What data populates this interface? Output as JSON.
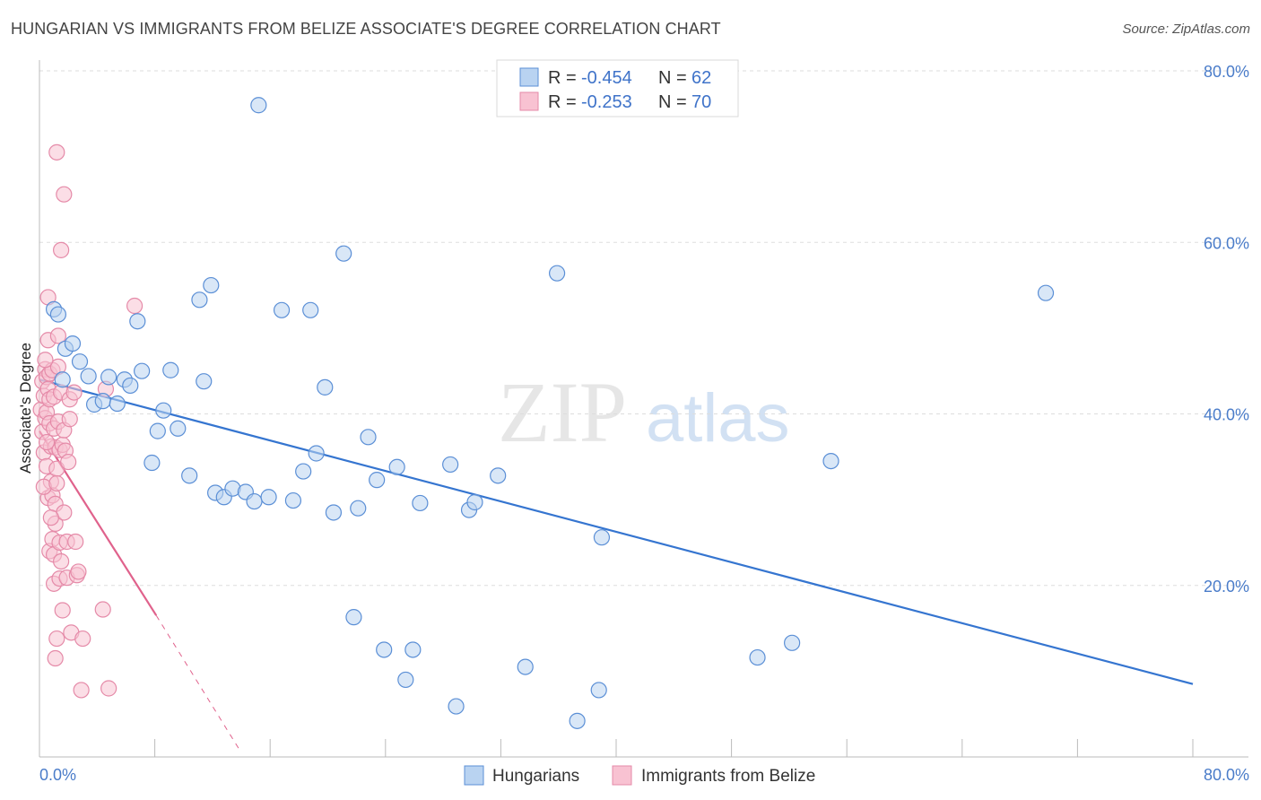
{
  "title": "HUNGARIAN VS IMMIGRANTS FROM BELIZE ASSOCIATE'S DEGREE CORRELATION CHART",
  "source": "Source: ZipAtlas.com",
  "watermark": {
    "part1": "ZIP",
    "part2": "atlas"
  },
  "colors": {
    "blue_fill": "#b9d3f1",
    "blue_stroke": "#5b8fd6",
    "blue_line": "#3575d0",
    "pink_fill": "#f8c2d2",
    "pink_stroke": "#e58aa8",
    "pink_line": "#e0628c",
    "grid": "#dddddd",
    "tick_text": "#4a7cc9"
  },
  "legend": {
    "series1": {
      "r_label": "R = ",
      "r_value": "-0.454",
      "n_label": "N = ",
      "n_value": "62"
    },
    "series2": {
      "r_label": "R = ",
      "r_value": "-0.253",
      "n_label": "N = ",
      "n_value": "70"
    }
  },
  "chart_data": {
    "type": "scatter",
    "title": "HUNGARIAN VS IMMIGRANTS FROM BELIZE ASSOCIATE'S DEGREE CORRELATION CHART",
    "xlabel": "",
    "ylabel": "Associate's Degree",
    "xlim": [
      0,
      80
    ],
    "ylim": [
      0,
      80
    ],
    "x_tick_labels": [
      "0.0%",
      "80.0%"
    ],
    "y_tick_labels": [
      "80.0%",
      "60.0%",
      "40.0%",
      "20.0%"
    ],
    "y_ticks": [
      80,
      60,
      40,
      20
    ],
    "grid": true,
    "series": [
      {
        "name": "Hungarians",
        "color": "#5b8fd6",
        "points": [
          [
            1.0,
            52.2
          ],
          [
            1.3,
            51.6
          ],
          [
            1.6,
            44.0
          ],
          [
            1.8,
            47.6
          ],
          [
            2.3,
            48.2
          ],
          [
            2.8,
            46.1
          ],
          [
            3.4,
            44.4
          ],
          [
            3.8,
            41.1
          ],
          [
            4.4,
            41.5
          ],
          [
            4.8,
            44.3
          ],
          [
            5.4,
            41.2
          ],
          [
            5.9,
            44.0
          ],
          [
            6.3,
            43.3
          ],
          [
            6.8,
            50.8
          ],
          [
            7.1,
            45.0
          ],
          [
            7.8,
            34.3
          ],
          [
            8.2,
            38.0
          ],
          [
            8.6,
            40.4
          ],
          [
            9.1,
            45.1
          ],
          [
            9.6,
            38.3
          ],
          [
            10.4,
            32.8
          ],
          [
            11.1,
            53.3
          ],
          [
            11.4,
            43.8
          ],
          [
            11.9,
            55.0
          ],
          [
            12.2,
            30.8
          ],
          [
            12.8,
            30.3
          ],
          [
            13.4,
            31.3
          ],
          [
            14.3,
            30.9
          ],
          [
            14.9,
            29.8
          ],
          [
            15.2,
            76.0
          ],
          [
            15.9,
            30.3
          ],
          [
            16.8,
            52.1
          ],
          [
            17.6,
            29.9
          ],
          [
            18.3,
            33.3
          ],
          [
            18.8,
            52.1
          ],
          [
            19.2,
            35.4
          ],
          [
            19.8,
            43.1
          ],
          [
            20.4,
            28.5
          ],
          [
            21.1,
            58.7
          ],
          [
            21.8,
            16.3
          ],
          [
            22.1,
            29.0
          ],
          [
            22.8,
            37.3
          ],
          [
            23.4,
            32.3
          ],
          [
            23.9,
            12.5
          ],
          [
            24.8,
            33.8
          ],
          [
            25.4,
            9.0
          ],
          [
            25.9,
            12.5
          ],
          [
            26.4,
            29.6
          ],
          [
            28.5,
            34.1
          ],
          [
            28.9,
            5.9
          ],
          [
            29.8,
            28.8
          ],
          [
            30.2,
            29.7
          ],
          [
            31.8,
            32.8
          ],
          [
            33.7,
            10.5
          ],
          [
            35.9,
            56.4
          ],
          [
            37.3,
            4.2
          ],
          [
            38.8,
            7.8
          ],
          [
            39.0,
            25.6
          ],
          [
            49.8,
            11.6
          ],
          [
            52.2,
            13.3
          ],
          [
            54.9,
            34.5
          ],
          [
            69.8,
            54.1
          ]
        ]
      },
      {
        "name": "Immigrants from Belize",
        "color": "#e58aa8",
        "points": [
          [
            0.1,
            40.5
          ],
          [
            0.2,
            43.8
          ],
          [
            0.2,
            37.9
          ],
          [
            0.3,
            35.5
          ],
          [
            0.3,
            42.1
          ],
          [
            0.4,
            45.2
          ],
          [
            0.4,
            39.5
          ],
          [
            0.5,
            44.3
          ],
          [
            0.5,
            33.9
          ],
          [
            0.5,
            40.2
          ],
          [
            0.6,
            48.6
          ],
          [
            0.6,
            53.6
          ],
          [
            0.6,
            30.2
          ],
          [
            0.6,
            42.9
          ],
          [
            0.7,
            44.7
          ],
          [
            0.7,
            38.9
          ],
          [
            0.7,
            41.7
          ],
          [
            0.7,
            24.0
          ],
          [
            0.8,
            36.2
          ],
          [
            0.8,
            32.1
          ],
          [
            0.9,
            45.1
          ],
          [
            0.9,
            30.5
          ],
          [
            0.9,
            25.4
          ],
          [
            1.0,
            42.0
          ],
          [
            1.0,
            38.3
          ],
          [
            1.0,
            23.6
          ],
          [
            1.0,
            20.2
          ],
          [
            1.1,
            11.5
          ],
          [
            1.1,
            36.1
          ],
          [
            1.1,
            29.5
          ],
          [
            1.1,
            27.2
          ],
          [
            1.2,
            70.5
          ],
          [
            1.2,
            33.6
          ],
          [
            1.2,
            13.8
          ],
          [
            1.3,
            49.1
          ],
          [
            1.3,
            45.5
          ],
          [
            1.3,
            39.1
          ],
          [
            1.4,
            35.8
          ],
          [
            1.4,
            25.0
          ],
          [
            1.4,
            20.8
          ],
          [
            1.5,
            42.5
          ],
          [
            1.5,
            59.1
          ],
          [
            1.6,
            36.4
          ],
          [
            1.6,
            17.1
          ],
          [
            1.7,
            65.6
          ],
          [
            1.7,
            38.1
          ],
          [
            1.7,
            28.5
          ],
          [
            1.8,
            35.7
          ],
          [
            1.9,
            25.1
          ],
          [
            1.9,
            20.9
          ],
          [
            2.0,
            34.4
          ],
          [
            2.1,
            41.7
          ],
          [
            2.1,
            39.4
          ],
          [
            2.2,
            14.5
          ],
          [
            2.4,
            42.5
          ],
          [
            2.5,
            25.1
          ],
          [
            2.6,
            21.2
          ],
          [
            2.7,
            21.6
          ],
          [
            2.9,
            7.8
          ],
          [
            3.0,
            13.8
          ],
          [
            4.4,
            17.2
          ],
          [
            4.6,
            42.9
          ],
          [
            4.8,
            8.0
          ],
          [
            6.6,
            52.6
          ],
          [
            0.3,
            31.5
          ],
          [
            0.5,
            36.7
          ],
          [
            0.8,
            27.9
          ],
          [
            1.2,
            31.9
          ],
          [
            1.5,
            22.8
          ],
          [
            0.4,
            46.3
          ]
        ]
      }
    ],
    "trendlines": [
      {
        "series": "Hungarians",
        "x": [
          0,
          80
        ],
        "y": [
          44.0,
          8.5
        ],
        "style": "solid"
      },
      {
        "series": "Immigrants from Belize",
        "x": [
          0,
          8.1
        ],
        "y": [
          38.0,
          16.5
        ],
        "style": "solid"
      },
      {
        "series": "Immigrants from Belize",
        "x": [
          8.1,
          14.0
        ],
        "y": [
          16.5,
          0.5
        ],
        "style": "dashed"
      }
    ],
    "legend": [
      "Hungarians",
      "Immigrants from Belize"
    ]
  }
}
